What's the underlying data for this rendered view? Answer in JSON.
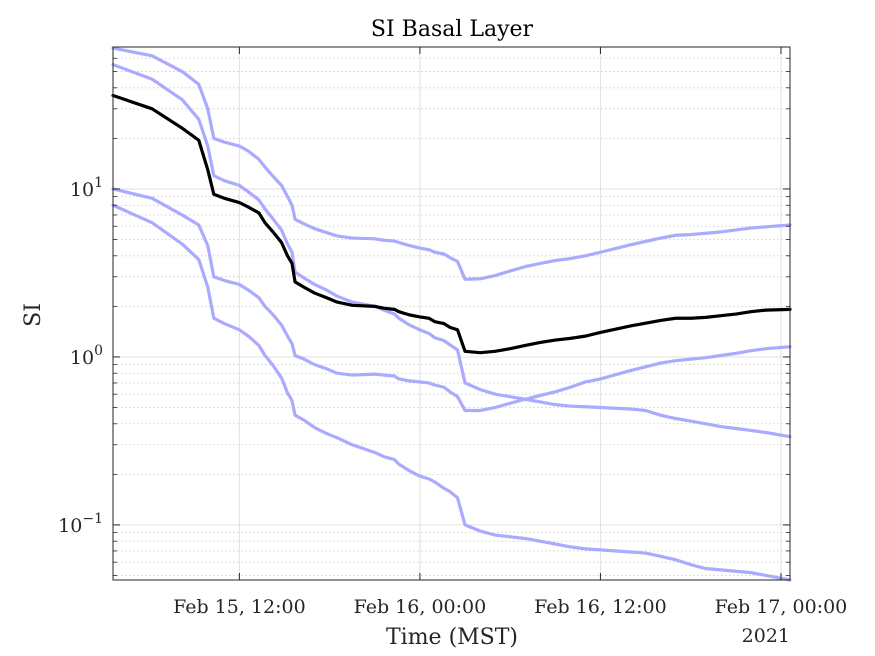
{
  "chart_data": {
    "type": "line",
    "title": "SI Basal Layer",
    "xlabel": "Time (MST)",
    "ylabel": "SI",
    "x_secondary_label": "2021",
    "yscale": "log",
    "grid": true,
    "minor_grid": true,
    "x_unit": "hours since Feb 15, 00:00 (MST)",
    "xlim": [
      3.6,
      48.6
    ],
    "ylim": [
      0.047,
      70
    ],
    "x_ticks": [
      {
        "value": 12,
        "label": "Feb 15, 12:00"
      },
      {
        "value": 24,
        "label": "Feb 16, 00:00"
      },
      {
        "value": 36,
        "label": "Feb 16, 12:00"
      },
      {
        "value": 48,
        "label": "Feb 17, 00:00"
      }
    ],
    "y_ticks": [
      {
        "value": 0.1,
        "base": "10",
        "exp": "−1"
      },
      {
        "value": 1,
        "base": "10",
        "exp": "0"
      },
      {
        "value": 10,
        "base": "10",
        "exp": "1"
      }
    ],
    "series": [
      {
        "color": "#000000",
        "width": 3.2,
        "opacity": 1,
        "points": [
          [
            3.6,
            36
          ],
          [
            6.2,
            30
          ],
          [
            8.2,
            23
          ],
          [
            9.3,
            19.5
          ],
          [
            9.9,
            13
          ],
          [
            10.3,
            9.3
          ],
          [
            11,
            8.8
          ],
          [
            12,
            8.3
          ],
          [
            12.6,
            7.8
          ],
          [
            13.3,
            7.2
          ],
          [
            13.7,
            6.3
          ],
          [
            14.2,
            5.6
          ],
          [
            14.8,
            4.8
          ],
          [
            15.2,
            4.0
          ],
          [
            15.5,
            3.6
          ],
          [
            15.7,
            2.8
          ],
          [
            16.3,
            2.6
          ],
          [
            17,
            2.4
          ],
          [
            17.8,
            2.25
          ],
          [
            18.5,
            2.12
          ],
          [
            19.5,
            2.03
          ],
          [
            21,
            2.0
          ],
          [
            21.6,
            1.95
          ],
          [
            22.3,
            1.92
          ],
          [
            22.6,
            1.86
          ],
          [
            23.3,
            1.78
          ],
          [
            24,
            1.73
          ],
          [
            24.6,
            1.7
          ],
          [
            25,
            1.62
          ],
          [
            25.6,
            1.58
          ],
          [
            26,
            1.5
          ],
          [
            26.5,
            1.45
          ],
          [
            27,
            1.08
          ],
          [
            28,
            1.06
          ],
          [
            29,
            1.08
          ],
          [
            30,
            1.12
          ],
          [
            31,
            1.17
          ],
          [
            32,
            1.22
          ],
          [
            33,
            1.26
          ],
          [
            34,
            1.29
          ],
          [
            35,
            1.33
          ],
          [
            36,
            1.4
          ],
          [
            38,
            1.53
          ],
          [
            40,
            1.65
          ],
          [
            41,
            1.7
          ],
          [
            42,
            1.7
          ],
          [
            43,
            1.72
          ],
          [
            44,
            1.76
          ],
          [
            45,
            1.8
          ],
          [
            46,
            1.86
          ],
          [
            47,
            1.9
          ],
          [
            48.6,
            1.92
          ]
        ]
      },
      {
        "color": "#aaaaff",
        "width": 3.2,
        "opacity": 1,
        "points": [
          [
            3.6,
            69
          ],
          [
            6.2,
            62
          ],
          [
            8.2,
            50
          ],
          [
            9.3,
            42
          ],
          [
            9.9,
            30
          ],
          [
            10.3,
            20
          ],
          [
            11,
            19
          ],
          [
            12,
            18
          ],
          [
            12.6,
            16.8
          ],
          [
            13.3,
            15
          ],
          [
            13.7,
            13.5
          ],
          [
            14.2,
            12
          ],
          [
            14.8,
            10.5
          ],
          [
            15.2,
            9
          ],
          [
            15.5,
            8
          ],
          [
            15.7,
            6.6
          ],
          [
            16.3,
            6.2
          ],
          [
            17,
            5.8
          ],
          [
            17.8,
            5.5
          ],
          [
            18.5,
            5.25
          ],
          [
            19.5,
            5.1
          ],
          [
            21,
            5.05
          ],
          [
            21.6,
            4.95
          ],
          [
            22.3,
            4.9
          ],
          [
            22.6,
            4.8
          ],
          [
            23.3,
            4.6
          ],
          [
            24,
            4.45
          ],
          [
            24.6,
            4.35
          ],
          [
            25,
            4.2
          ],
          [
            25.6,
            4.1
          ],
          [
            26,
            3.9
          ],
          [
            26.5,
            3.7
          ],
          [
            27,
            2.9
          ],
          [
            28,
            2.92
          ],
          [
            29,
            3.05
          ],
          [
            30,
            3.25
          ],
          [
            31,
            3.45
          ],
          [
            32,
            3.6
          ],
          [
            33,
            3.75
          ],
          [
            34,
            3.85
          ],
          [
            35,
            4.0
          ],
          [
            36,
            4.2
          ],
          [
            38,
            4.65
          ],
          [
            40,
            5.1
          ],
          [
            41,
            5.3
          ],
          [
            42,
            5.35
          ],
          [
            43,
            5.45
          ],
          [
            44,
            5.55
          ],
          [
            45,
            5.7
          ],
          [
            46,
            5.85
          ],
          [
            47,
            5.95
          ],
          [
            48.6,
            6.1
          ]
        ]
      },
      {
        "color": "#aaaaff",
        "width": 3.2,
        "opacity": 1,
        "points": [
          [
            3.6,
            55
          ],
          [
            6.2,
            45
          ],
          [
            8.2,
            34
          ],
          [
            9.3,
            26
          ],
          [
            9.9,
            18
          ],
          [
            10.3,
            12
          ],
          [
            11,
            11.2
          ],
          [
            12,
            10.5
          ],
          [
            12.6,
            9.6
          ],
          [
            13.3,
            8.6
          ],
          [
            13.7,
            7.6
          ],
          [
            14.2,
            6.7
          ],
          [
            14.8,
            5.7
          ],
          [
            15.2,
            4.7
          ],
          [
            15.5,
            4.2
          ],
          [
            15.7,
            3.2
          ],
          [
            16.3,
            2.95
          ],
          [
            17,
            2.7
          ],
          [
            17.8,
            2.5
          ],
          [
            18.5,
            2.3
          ],
          [
            19.5,
            2.12
          ],
          [
            21,
            2.0
          ],
          [
            21.6,
            1.9
          ],
          [
            22.3,
            1.8
          ],
          [
            22.6,
            1.7
          ],
          [
            23.3,
            1.55
          ],
          [
            24,
            1.45
          ],
          [
            24.6,
            1.38
          ],
          [
            25,
            1.3
          ],
          [
            25.6,
            1.25
          ],
          [
            26,
            1.18
          ],
          [
            26.5,
            1.1
          ],
          [
            27,
            0.7
          ],
          [
            28,
            0.64
          ],
          [
            29,
            0.6
          ],
          [
            30,
            0.58
          ],
          [
            31,
            0.56
          ],
          [
            32,
            0.54
          ],
          [
            33,
            0.52
          ],
          [
            34,
            0.51
          ],
          [
            35,
            0.505
          ],
          [
            36,
            0.5
          ],
          [
            38,
            0.49
          ],
          [
            39,
            0.48
          ],
          [
            40,
            0.45
          ],
          [
            41,
            0.43
          ],
          [
            42,
            0.415
          ],
          [
            43,
            0.4
          ],
          [
            44,
            0.385
          ],
          [
            45,
            0.375
          ],
          [
            46,
            0.365
          ],
          [
            47,
            0.355
          ],
          [
            48.6,
            0.335
          ]
        ]
      },
      {
        "color": "#aaaaff",
        "width": 3.2,
        "opacity": 1,
        "points": [
          [
            3.6,
            10
          ],
          [
            6.2,
            8.8
          ],
          [
            8.2,
            7
          ],
          [
            9.3,
            6.1
          ],
          [
            9.9,
            4.6
          ],
          [
            10.3,
            3.0
          ],
          [
            11,
            2.85
          ],
          [
            12,
            2.7
          ],
          [
            12.6,
            2.5
          ],
          [
            13.3,
            2.25
          ],
          [
            13.7,
            2.0
          ],
          [
            14.2,
            1.8
          ],
          [
            14.8,
            1.55
          ],
          [
            15.2,
            1.33
          ],
          [
            15.5,
            1.2
          ],
          [
            15.7,
            1.02
          ],
          [
            16.3,
            0.97
          ],
          [
            17,
            0.9
          ],
          [
            17.8,
            0.85
          ],
          [
            18.5,
            0.8
          ],
          [
            19.5,
            0.78
          ],
          [
            21,
            0.79
          ],
          [
            21.6,
            0.78
          ],
          [
            22.3,
            0.77
          ],
          [
            22.6,
            0.74
          ],
          [
            23.3,
            0.72
          ],
          [
            24,
            0.71
          ],
          [
            24.6,
            0.7
          ],
          [
            25,
            0.68
          ],
          [
            25.6,
            0.66
          ],
          [
            26,
            0.62
          ],
          [
            26.5,
            0.58
          ],
          [
            27,
            0.48
          ],
          [
            28,
            0.48
          ],
          [
            29,
            0.5
          ],
          [
            30,
            0.53
          ],
          [
            31,
            0.56
          ],
          [
            32,
            0.59
          ],
          [
            33,
            0.62
          ],
          [
            34,
            0.66
          ],
          [
            35,
            0.71
          ],
          [
            36,
            0.74
          ],
          [
            38,
            0.83
          ],
          [
            40,
            0.92
          ],
          [
            41,
            0.95
          ],
          [
            42,
            0.97
          ],
          [
            43,
            0.99
          ],
          [
            44,
            1.02
          ],
          [
            45,
            1.05
          ],
          [
            46,
            1.09
          ],
          [
            47,
            1.12
          ],
          [
            48.6,
            1.15
          ]
        ]
      },
      {
        "color": "#aaaaff",
        "width": 3.2,
        "opacity": 1,
        "points": [
          [
            3.6,
            8
          ],
          [
            6.2,
            6.3
          ],
          [
            8.2,
            4.7
          ],
          [
            9.3,
            3.8
          ],
          [
            9.9,
            2.6
          ],
          [
            10.3,
            1.7
          ],
          [
            11,
            1.58
          ],
          [
            12,
            1.45
          ],
          [
            12.6,
            1.33
          ],
          [
            13.3,
            1.17
          ],
          [
            13.7,
            1.02
          ],
          [
            14.2,
            0.9
          ],
          [
            14.8,
            0.75
          ],
          [
            15.2,
            0.61
          ],
          [
            15.5,
            0.55
          ],
          [
            15.7,
            0.45
          ],
          [
            16.3,
            0.42
          ],
          [
            17,
            0.38
          ],
          [
            17.8,
            0.35
          ],
          [
            18.5,
            0.33
          ],
          [
            19.5,
            0.3
          ],
          [
            21,
            0.27
          ],
          [
            21.6,
            0.255
          ],
          [
            22.3,
            0.245
          ],
          [
            22.6,
            0.23
          ],
          [
            23.3,
            0.21
          ],
          [
            24,
            0.195
          ],
          [
            24.6,
            0.188
          ],
          [
            25,
            0.18
          ],
          [
            25.6,
            0.165
          ],
          [
            26,
            0.158
          ],
          [
            26.5,
            0.145
          ],
          [
            27,
            0.1
          ],
          [
            28,
            0.092
          ],
          [
            29,
            0.087
          ],
          [
            30,
            0.085
          ],
          [
            31,
            0.083
          ],
          [
            32,
            0.08
          ],
          [
            33,
            0.077
          ],
          [
            34,
            0.074
          ],
          [
            35,
            0.072
          ],
          [
            36,
            0.071
          ],
          [
            38,
            0.069
          ],
          [
            39,
            0.068
          ],
          [
            40,
            0.065
          ],
          [
            41,
            0.062
          ],
          [
            42,
            0.058
          ],
          [
            43,
            0.055
          ],
          [
            44,
            0.054
          ],
          [
            45,
            0.053
          ],
          [
            46,
            0.052
          ],
          [
            47,
            0.05
          ],
          [
            48.6,
            0.047
          ]
        ]
      }
    ]
  }
}
